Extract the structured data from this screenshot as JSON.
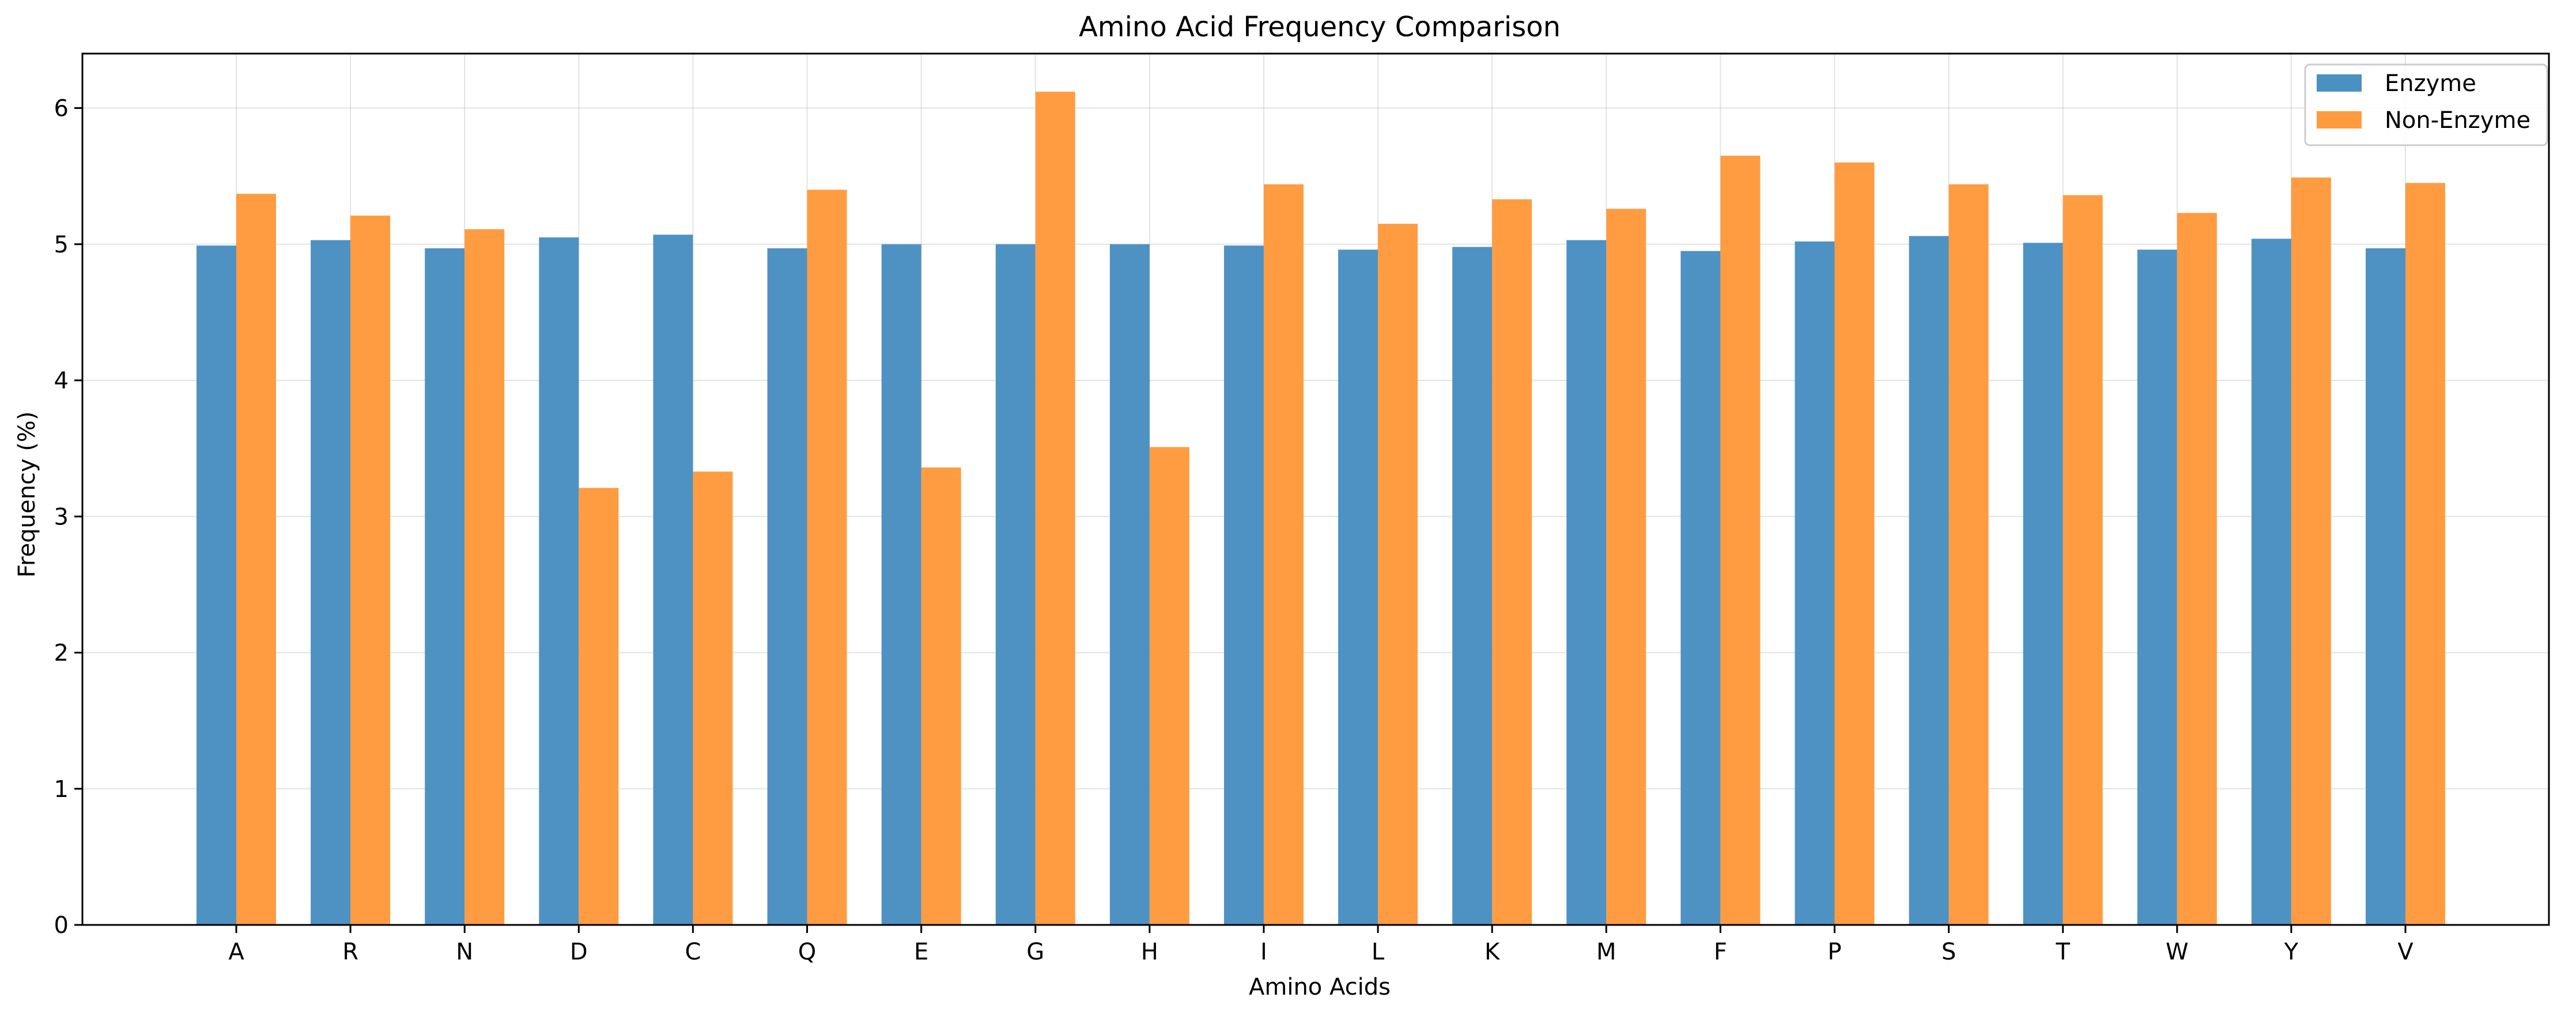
{
  "chart_data": {
    "type": "bar",
    "title": "Amino Acid Frequency Comparison",
    "xlabel": "Amino Acids",
    "ylabel": "Frequency (%)",
    "ylim": [
      0,
      6.4
    ],
    "yticks": [
      0,
      1,
      2,
      3,
      4,
      5,
      6
    ],
    "grid": true,
    "legend_position": "top-right",
    "categories": [
      "A",
      "R",
      "N",
      "D",
      "C",
      "Q",
      "E",
      "G",
      "H",
      "I",
      "L",
      "K",
      "M",
      "F",
      "P",
      "S",
      "T",
      "W",
      "Y",
      "V"
    ],
    "series": [
      {
        "name": "Enzyme",
        "color": "#4a90c2",
        "values": [
          4.99,
          5.03,
          4.97,
          5.05,
          5.07,
          4.97,
          5.0,
          5.0,
          5.0,
          4.99,
          4.96,
          4.98,
          5.03,
          4.95,
          5.02,
          5.06,
          5.01,
          4.96,
          5.04,
          4.97
        ]
      },
      {
        "name": "Non-Enzyme",
        "color": "#ff9a3d",
        "values": [
          5.37,
          5.21,
          5.11,
          3.21,
          3.33,
          5.4,
          3.36,
          6.12,
          3.51,
          5.44,
          5.15,
          5.33,
          5.26,
          5.65,
          5.6,
          5.44,
          5.36,
          5.23,
          5.49,
          5.45
        ]
      }
    ]
  }
}
